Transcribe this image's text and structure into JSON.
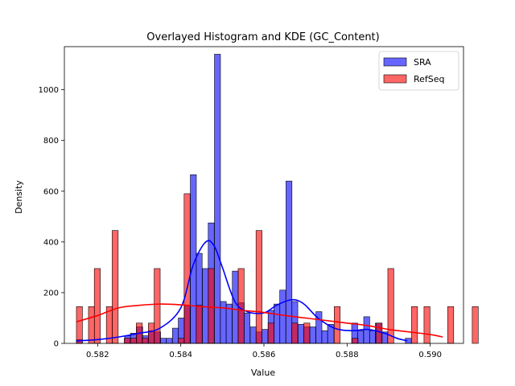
{
  "chart_data": {
    "type": "bar",
    "title": "Overlayed Histogram and KDE (GC_Content)",
    "xlabel": "Value",
    "ylabel": "Density",
    "xlim": [
      0.5812,
      0.5908
    ],
    "ylim": [
      0,
      1170
    ],
    "xticks": [
      0.582,
      0.584,
      0.586,
      0.588,
      0.59
    ],
    "xtick_labels": [
      "0.582",
      "0.584",
      "0.586",
      "0.588",
      "0.590"
    ],
    "yticks": [
      0,
      200,
      400,
      600,
      800,
      1000
    ],
    "ytick_labels": [
      "0",
      "200",
      "400",
      "600",
      "800",
      "1000"
    ],
    "legend": {
      "placement": "top-right"
    },
    "series": [
      {
        "name": "SRA",
        "color": "#0000ff",
        "fill_opacity": 0.6,
        "bin_width": 0.000144,
        "bins": [
          [
            0.58149,
            15
          ],
          [
            0.58265,
            30
          ],
          [
            0.58279,
            40
          ],
          [
            0.58294,
            65
          ],
          [
            0.58308,
            30
          ],
          [
            0.58322,
            50
          ],
          [
            0.58337,
            45
          ],
          [
            0.58351,
            20
          ],
          [
            0.58365,
            20
          ],
          [
            0.5838,
            60
          ],
          [
            0.58394,
            100
          ],
          [
            0.58409,
            150
          ],
          [
            0.58423,
            665
          ],
          [
            0.58437,
            355
          ],
          [
            0.58452,
            295
          ],
          [
            0.58466,
            475
          ],
          [
            0.58481,
            1140
          ],
          [
            0.58495,
            165
          ],
          [
            0.58509,
            155
          ],
          [
            0.58524,
            285
          ],
          [
            0.58538,
            160
          ],
          [
            0.58552,
            120
          ],
          [
            0.58567,
            65
          ],
          [
            0.58581,
            45
          ],
          [
            0.58595,
            55
          ],
          [
            0.5861,
            130
          ],
          [
            0.58624,
            155
          ],
          [
            0.58638,
            210
          ],
          [
            0.58653,
            640
          ],
          [
            0.58667,
            165
          ],
          [
            0.58682,
            75
          ],
          [
            0.58696,
            65
          ],
          [
            0.5871,
            65
          ],
          [
            0.58725,
            125
          ],
          [
            0.58739,
            50
          ],
          [
            0.58753,
            75
          ],
          [
            0.58811,
            80
          ],
          [
            0.58825,
            50
          ],
          [
            0.5884,
            105
          ],
          [
            0.58854,
            50
          ],
          [
            0.58868,
            80
          ],
          [
            0.58883,
            45
          ],
          [
            0.5894,
            20
          ]
        ],
        "kde": {
          "x": [
            0.58149,
            0.582,
            0.5825,
            0.583,
            0.5835,
            0.584,
            0.5843,
            0.5846,
            0.5848,
            0.585,
            0.5853,
            0.5856,
            0.586,
            0.5863,
            0.5866,
            0.5868,
            0.587,
            0.5873,
            0.5877,
            0.5881,
            0.5885,
            0.5889,
            0.5892,
            0.58945
          ],
          "y": [
            10,
            15,
            25,
            40,
            60,
            140,
            310,
            400,
            385,
            300,
            165,
            125,
            120,
            150,
            170,
            170,
            150,
            100,
            60,
            50,
            55,
            40,
            20,
            10
          ]
        }
      },
      {
        "name": "RefSeq",
        "color": "#ff0000",
        "fill_opacity": 0.6,
        "bin_width": 0.000144,
        "bins": [
          [
            0.58149,
            145
          ],
          [
            0.58178,
            145
          ],
          [
            0.58192,
            295
          ],
          [
            0.58221,
            145
          ],
          [
            0.58235,
            445
          ],
          [
            0.58264,
            20
          ],
          [
            0.58279,
            20
          ],
          [
            0.58293,
            80
          ],
          [
            0.58307,
            20
          ],
          [
            0.58322,
            80
          ],
          [
            0.58336,
            295
          ],
          [
            0.58394,
            20
          ],
          [
            0.58408,
            590
          ],
          [
            0.58437,
            150
          ],
          [
            0.58466,
            295
          ],
          [
            0.58538,
            295
          ],
          [
            0.58581,
            445
          ],
          [
            0.5861,
            80
          ],
          [
            0.58667,
            80
          ],
          [
            0.58696,
            80
          ],
          [
            0.58769,
            145
          ],
          [
            0.58812,
            20
          ],
          [
            0.5887,
            80
          ],
          [
            0.58898,
            295
          ],
          [
            0.58955,
            145
          ],
          [
            0.58985,
            145
          ],
          [
            0.59042,
            145
          ],
          [
            0.59101,
            145
          ]
        ],
        "kde": {
          "x": [
            0.58149,
            0.582,
            0.5825,
            0.583,
            0.5835,
            0.584,
            0.5845,
            0.585,
            0.5855,
            0.586,
            0.5865,
            0.587,
            0.5875,
            0.588,
            0.5885,
            0.589,
            0.5895,
            0.59,
            0.5903
          ],
          "y": [
            85,
            110,
            140,
            150,
            155,
            152,
            145,
            140,
            130,
            122,
            110,
            100,
            90,
            80,
            70,
            55,
            45,
            35,
            25
          ]
        }
      }
    ]
  }
}
